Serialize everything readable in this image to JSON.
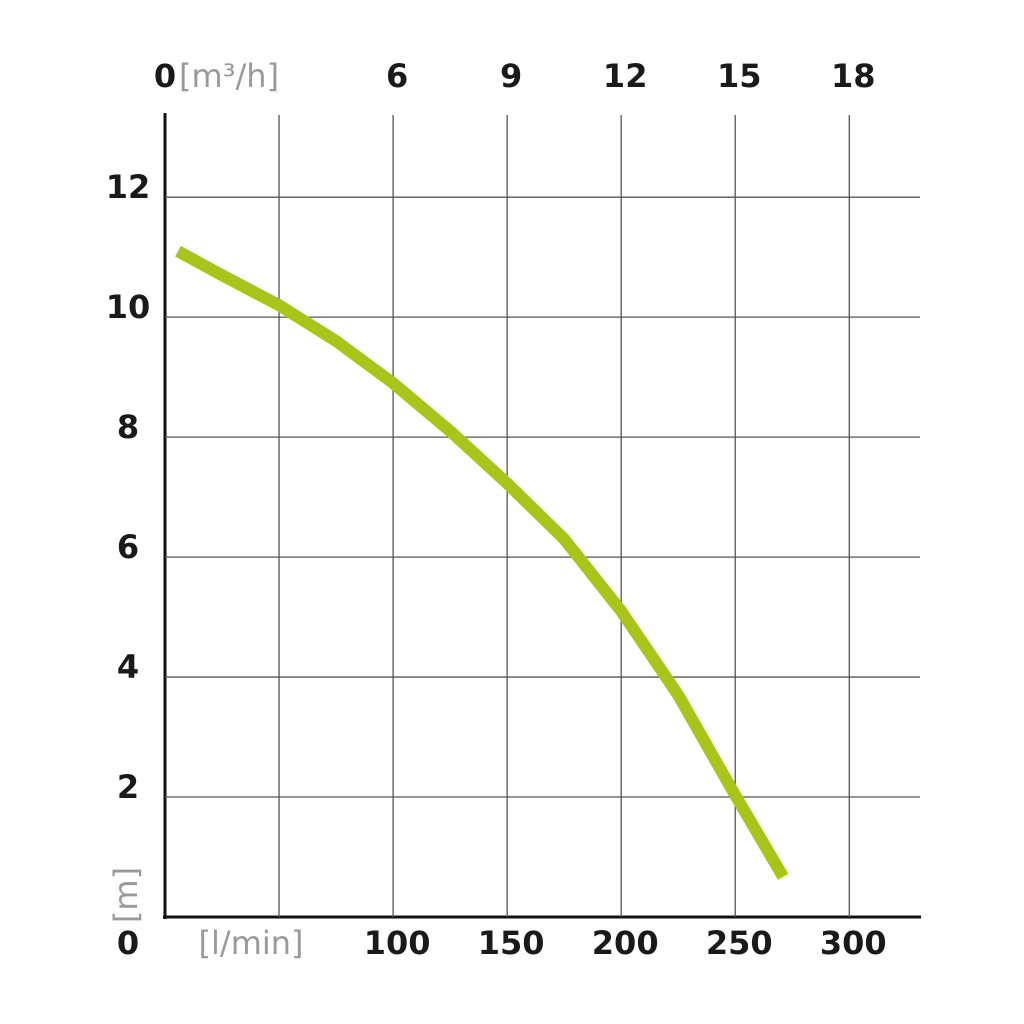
{
  "chart_data": {
    "type": "line",
    "x": [
      5.7,
      25,
      50,
      75,
      100,
      125,
      150,
      175,
      200,
      225,
      250,
      271
    ],
    "values": [
      11.1,
      10.7,
      10.2,
      9.6,
      8.9,
      8.1,
      7.23,
      6.3,
      5.1,
      3.7,
      2.03,
      0.67
    ],
    "color": "#a9c41a",
    "xlim": [
      0,
      331
    ],
    "xticks": [
      {
        "value": 50,
        "label": "[l/min]"
      },
      100,
      150,
      200,
      250,
      300
    ],
    "x2lim": [
      0,
      19.86
    ],
    "x2ticks": [
      0,
      {
        "value": 3,
        "label": "[m³/h]"
      },
      6,
      9,
      12,
      15,
      18
    ],
    "ylim": [
      0,
      13.37
    ],
    "yticks": [
      0,
      2,
      4,
      6,
      8,
      10,
      12
    ],
    "y_label": "[m]",
    "grid": true
  }
}
